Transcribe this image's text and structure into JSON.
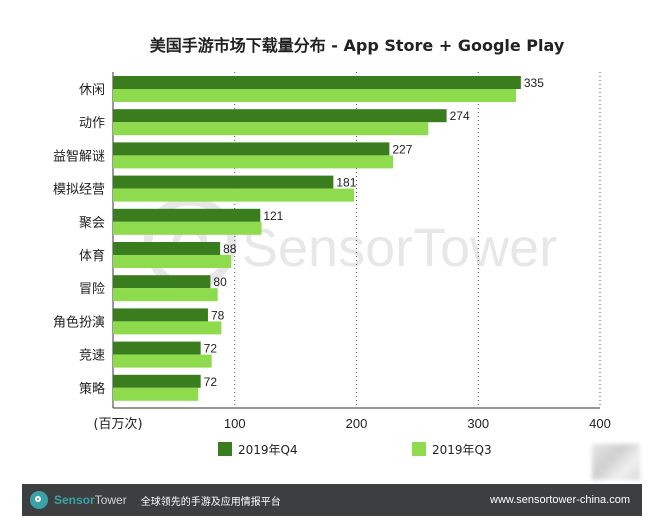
{
  "chart_data": {
    "type": "bar",
    "orientation": "horizontal",
    "title": "美国手游市场下载量分布 - App Store + Google Play",
    "categories": [
      "休闲",
      "动作",
      "益智解谜",
      "模拟经营",
      "聚会",
      "体育",
      "冒险",
      "角色扮演",
      "竞速",
      "策略"
    ],
    "series": [
      {
        "name": "2019年Q4",
        "color": "#3a7d1e",
        "values": [
          335,
          274,
          227,
          181,
          121,
          88,
          80,
          78,
          72,
          72
        ]
      },
      {
        "name": "2019年Q3",
        "color": "#8edb4e",
        "values": [
          331,
          259,
          230,
          198,
          122,
          97,
          86,
          89,
          81,
          70
        ]
      }
    ],
    "data_labels_series": "2019年Q4",
    "xlabel": "(百万次)",
    "xlim": [
      0,
      400
    ],
    "xticks": [
      100,
      200,
      300,
      400
    ],
    "xtick_labels": [
      "100",
      "200",
      "300",
      "400"
    ],
    "grid": "vertical dotted",
    "legend_position": "bottom",
    "watermark": "SensorTower"
  },
  "footer": {
    "brand_part1": "Sensor",
    "brand_part2": "Tower",
    "tagline": "全球领先的手游及应用情报平台",
    "url": "www.sensortower-china.com",
    "background": "#3d3e40",
    "accent": "#3aa2a5"
  }
}
